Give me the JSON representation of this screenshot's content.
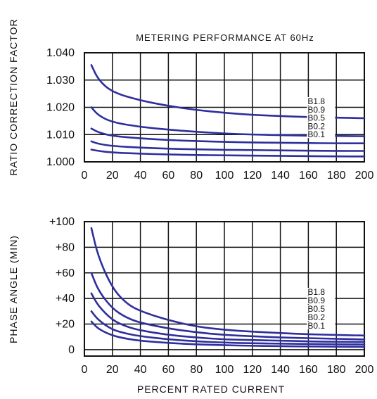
{
  "chart_data": [
    {
      "type": "line",
      "title": "METERING PERFORMANCE AT 60Hz",
      "ylabel": "RATIO CORRECTION FACTOR",
      "xlabel": "",
      "xlim": [
        0,
        200
      ],
      "ylim": [
        1.0,
        1.04
      ],
      "x_ticks": [
        "0",
        "20",
        "40",
        "60",
        "80",
        "100",
        "120",
        "140",
        "160",
        "180",
        "200"
      ],
      "y_ticks": [
        "1.000",
        "1.010",
        "1.020",
        "1.030",
        "1.040"
      ],
      "grid": true,
      "line_color": "#2e2f9c",
      "series": [
        {
          "name": "B1.8",
          "x": [
            5,
            10,
            20,
            40,
            60,
            80,
            100,
            120,
            140,
            160,
            180,
            200
          ],
          "values": [
            1.0355,
            1.03,
            1.0255,
            1.0225,
            1.0205,
            1.019,
            1.018,
            1.0172,
            1.0168,
            1.0164,
            1.0162,
            1.016
          ]
        },
        {
          "name": "B0.9",
          "x": [
            5,
            10,
            20,
            40,
            60,
            80,
            100,
            120,
            140,
            160,
            180,
            200
          ],
          "values": [
            1.02,
            1.017,
            1.0145,
            1.0128,
            1.0118,
            1.011,
            1.0104,
            1.01,
            1.0098,
            1.0096,
            1.0095,
            1.0094
          ]
        },
        {
          "name": "B0.5",
          "x": [
            5,
            10,
            20,
            40,
            60,
            80,
            100,
            120,
            140,
            160,
            180,
            200
          ],
          "values": [
            1.0122,
            1.0108,
            1.0095,
            1.0086,
            1.008,
            1.0076,
            1.0073,
            1.0071,
            1.007,
            1.0069,
            1.0068,
            1.0068
          ]
        },
        {
          "name": "B0.2",
          "x": [
            5,
            10,
            20,
            40,
            60,
            80,
            100,
            120,
            140,
            160,
            180,
            200
          ],
          "values": [
            1.0075,
            1.0066,
            1.0058,
            1.0052,
            1.0048,
            1.0046,
            1.0044,
            1.0043,
            1.0042,
            1.0041,
            1.004,
            1.004
          ]
        },
        {
          "name": "B0.1",
          "x": [
            5,
            10,
            20,
            40,
            60,
            80,
            100,
            120,
            140,
            160,
            180,
            200
          ],
          "values": [
            1.0045,
            1.004,
            1.0034,
            1.003,
            1.0027,
            1.0025,
            1.0024,
            1.0023,
            1.0022,
            1.0021,
            1.002,
            1.002
          ]
        }
      ]
    },
    {
      "type": "line",
      "title": "",
      "ylabel": "PHASE ANGLE  (MIN)",
      "xlabel": "PERCENT RATED CURRENT",
      "xlim": [
        0,
        200
      ],
      "ylim": [
        -5,
        100
      ],
      "x_ticks": [
        "0",
        "20",
        "40",
        "60",
        "80",
        "100",
        "120",
        "140",
        "160",
        "180",
        "200"
      ],
      "y_ticks": [
        "0",
        "+20",
        "+40",
        "+60",
        "+80",
        "+100"
      ],
      "grid": true,
      "line_color": "#2e2f9c",
      "series": [
        {
          "name": "B1.8",
          "x": [
            5,
            10,
            20,
            30,
            40,
            60,
            80,
            100,
            120,
            140,
            160,
            180,
            200
          ],
          "values": [
            95,
            72,
            48,
            36,
            30,
            23,
            18,
            15.5,
            14,
            13,
            12,
            11.5,
            11
          ]
        },
        {
          "name": "B0.9",
          "x": [
            5,
            10,
            20,
            30,
            40,
            60,
            80,
            100,
            120,
            140,
            160,
            180,
            200
          ],
          "values": [
            60,
            46,
            32,
            25,
            21,
            16.5,
            13.5,
            11.5,
            10.5,
            9.5,
            9,
            8.5,
            8
          ]
        },
        {
          "name": "B0.5",
          "x": [
            5,
            10,
            20,
            30,
            40,
            60,
            80,
            100,
            120,
            140,
            160,
            180,
            200
          ],
          "values": [
            44,
            34,
            23,
            18,
            15,
            11.5,
            9.5,
            8,
            7.5,
            7,
            6.5,
            6.2,
            6
          ]
        },
        {
          "name": "B0.2",
          "x": [
            5,
            10,
            20,
            30,
            40,
            60,
            80,
            100,
            120,
            140,
            160,
            180,
            200
          ],
          "values": [
            30,
            23,
            15.5,
            12.5,
            10.5,
            8,
            6.5,
            5.5,
            5,
            4.7,
            4.4,
            4.2,
            4
          ]
        },
        {
          "name": "B0.1",
          "x": [
            5,
            10,
            20,
            30,
            40,
            60,
            80,
            100,
            120,
            140,
            160,
            180,
            200
          ],
          "values": [
            22,
            16,
            11,
            8.5,
            7,
            5.2,
            4.2,
            3.5,
            3,
            2.7,
            2.5,
            2.3,
            2.2
          ]
        }
      ]
    }
  ]
}
